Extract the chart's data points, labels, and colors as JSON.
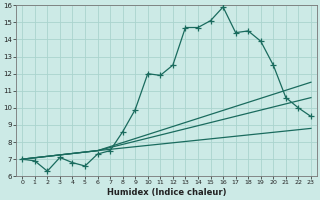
{
  "xlabel": "Humidex (Indice chaleur)",
  "bg_color": "#cceae6",
  "grid_color": "#aad4ce",
  "line_color": "#1a6b5e",
  "xlim": [
    -0.5,
    23.5
  ],
  "ylim": [
    6,
    16
  ],
  "xticks": [
    0,
    1,
    2,
    3,
    4,
    5,
    6,
    7,
    8,
    9,
    10,
    11,
    12,
    13,
    14,
    15,
    16,
    17,
    18,
    19,
    20,
    21,
    22,
    23
  ],
  "yticks": [
    6,
    7,
    8,
    9,
    10,
    11,
    12,
    13,
    14,
    15,
    16
  ],
  "line1_x": [
    0,
    1,
    2,
    3,
    4,
    5,
    6,
    7,
    8,
    9,
    10,
    11,
    12,
    13,
    14,
    15,
    16,
    17,
    18,
    19,
    20,
    21,
    22,
    23
  ],
  "line1_y": [
    7.0,
    6.9,
    6.3,
    7.1,
    6.8,
    6.6,
    7.3,
    7.5,
    8.6,
    9.9,
    12.0,
    11.9,
    12.5,
    14.7,
    14.7,
    15.1,
    15.9,
    14.4,
    14.5,
    13.9,
    12.5,
    10.6,
    10.0,
    9.5
  ],
  "line2_x": [
    0,
    6,
    23
  ],
  "line2_y": [
    7.0,
    7.5,
    11.5
  ],
  "line3_x": [
    0,
    6,
    23
  ],
  "line3_y": [
    7.0,
    7.5,
    10.6
  ],
  "line4_x": [
    0,
    6,
    23
  ],
  "line4_y": [
    7.0,
    7.5,
    8.8
  ]
}
